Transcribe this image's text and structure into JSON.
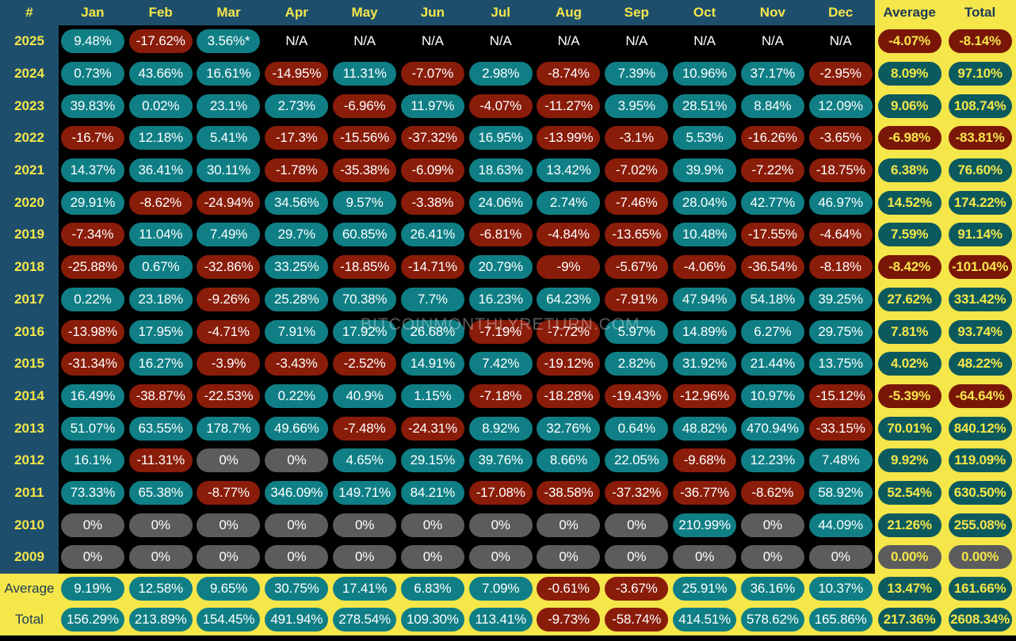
{
  "headers": [
    "#",
    "Jan",
    "Feb",
    "Mar",
    "Apr",
    "May",
    "Jun",
    "Jul",
    "Aug",
    "Sep",
    "Oct",
    "Nov",
    "Dec",
    "Average",
    "Total"
  ],
  "watermark": "BITCOINMONTHLYRETURN.COM",
  "colors": {
    "positive": "#0f7f85",
    "negative": "#8a1c0a",
    "zero": "#5c5c5c",
    "header_bg": "#1d4f6d",
    "accent_yellow": "#f5e64a"
  },
  "rows": [
    {
      "label": "2025",
      "cells": [
        "9.48%",
        "-17.62%",
        "3.56%*",
        "N/A",
        "N/A",
        "N/A",
        "N/A",
        "N/A",
        "N/A",
        "N/A",
        "N/A",
        "N/A",
        "-4.07%",
        "-8.14%"
      ]
    },
    {
      "label": "2024",
      "cells": [
        "0.73%",
        "43.66%",
        "16.61%",
        "-14.95%",
        "11.31%",
        "-7.07%",
        "2.98%",
        "-8.74%",
        "7.39%",
        "10.96%",
        "37.17%",
        "-2.95%",
        "8.09%",
        "97.10%"
      ]
    },
    {
      "label": "2023",
      "cells": [
        "39.83%",
        "0.02%",
        "23.1%",
        "2.73%",
        "-6.96%",
        "11.97%",
        "-4.07%",
        "-11.27%",
        "3.95%",
        "28.51%",
        "8.84%",
        "12.09%",
        "9.06%",
        "108.74%"
      ]
    },
    {
      "label": "2022",
      "cells": [
        "-16.7%",
        "12.18%",
        "5.41%",
        "-17.3%",
        "-15.56%",
        "-37.32%",
        "16.95%",
        "-13.99%",
        "-3.1%",
        "5.53%",
        "-16.26%",
        "-3.65%",
        "-6.98%",
        "-83.81%"
      ]
    },
    {
      "label": "2021",
      "cells": [
        "14.37%",
        "36.41%",
        "30.11%",
        "-1.78%",
        "-35.38%",
        "-6.09%",
        "18.63%",
        "13.42%",
        "-7.02%",
        "39.9%",
        "-7.22%",
        "-18.75%",
        "6.38%",
        "76.60%"
      ]
    },
    {
      "label": "2020",
      "cells": [
        "29.91%",
        "-8.62%",
        "-24.94%",
        "34.56%",
        "9.57%",
        "-3.38%",
        "24.06%",
        "2.74%",
        "-7.46%",
        "28.04%",
        "42.77%",
        "46.97%",
        "14.52%",
        "174.22%"
      ]
    },
    {
      "label": "2019",
      "cells": [
        "-7.34%",
        "11.04%",
        "7.49%",
        "29.7%",
        "60.85%",
        "26.41%",
        "-6.81%",
        "-4.84%",
        "-13.65%",
        "10.48%",
        "-17.55%",
        "-4.64%",
        "7.59%",
        "91.14%"
      ]
    },
    {
      "label": "2018",
      "cells": [
        "-25.88%",
        "0.67%",
        "-32.86%",
        "33.25%",
        "-18.85%",
        "-14.71%",
        "20.79%",
        "-9%",
        "-5.67%",
        "-4.06%",
        "-36.54%",
        "-8.18%",
        "-8.42%",
        "-101.04%"
      ]
    },
    {
      "label": "2017",
      "cells": [
        "0.22%",
        "23.18%",
        "-9.26%",
        "25.28%",
        "70.38%",
        "7.7%",
        "16.23%",
        "64.23%",
        "-7.91%",
        "47.94%",
        "54.18%",
        "39.25%",
        "27.62%",
        "331.42%"
      ]
    },
    {
      "label": "2016",
      "cells": [
        "-13.98%",
        "17.95%",
        "-4.71%",
        "7.91%",
        "17.92%",
        "26.68%",
        "-7.19%",
        "-7.72%",
        "5.97%",
        "14.89%",
        "6.27%",
        "29.75%",
        "7.81%",
        "93.74%"
      ]
    },
    {
      "label": "2015",
      "cells": [
        "-31.34%",
        "16.27%",
        "-3.9%",
        "-3.43%",
        "-2.52%",
        "14.91%",
        "7.42%",
        "-19.12%",
        "2.82%",
        "31.92%",
        "21.44%",
        "13.75%",
        "4.02%",
        "48.22%"
      ]
    },
    {
      "label": "2014",
      "cells": [
        "16.49%",
        "-38.87%",
        "-22.53%",
        "0.22%",
        "40.9%",
        "1.15%",
        "-7.18%",
        "-18.28%",
        "-19.43%",
        "-12.96%",
        "10.97%",
        "-15.12%",
        "-5.39%",
        "-64.64%"
      ]
    },
    {
      "label": "2013",
      "cells": [
        "51.07%",
        "63.55%",
        "178.7%",
        "49.66%",
        "-7.48%",
        "-24.31%",
        "8.92%",
        "32.76%",
        "0.64%",
        "48.82%",
        "470.94%",
        "-33.15%",
        "70.01%",
        "840.12%"
      ]
    },
    {
      "label": "2012",
      "cells": [
        "16.1%",
        "-11.31%",
        "0%",
        "0%",
        "4.65%",
        "29.15%",
        "39.76%",
        "8.66%",
        "22.05%",
        "-9.68%",
        "12.23%",
        "7.48%",
        "9.92%",
        "119.09%"
      ]
    },
    {
      "label": "2011",
      "cells": [
        "73.33%",
        "65.38%",
        "-8.77%",
        "346.09%",
        "149.71%",
        "84.21%",
        "-17.08%",
        "-38.58%",
        "-37.32%",
        "-36.77%",
        "-8.62%",
        "58.92%",
        "52.54%",
        "630.50%"
      ]
    },
    {
      "label": "2010",
      "cells": [
        "0%",
        "0%",
        "0%",
        "0%",
        "0%",
        "0%",
        "0%",
        "0%",
        "0%",
        "210.99%",
        "0%",
        "44.09%",
        "21.26%",
        "255.08%"
      ]
    },
    {
      "label": "2009",
      "cells": [
        "0%",
        "0%",
        "0%",
        "0%",
        "0%",
        "0%",
        "0%",
        "0%",
        "0%",
        "0%",
        "0%",
        "0%",
        "0.00%",
        "0.00%"
      ]
    },
    {
      "label": "Average",
      "cells": [
        "9.19%",
        "12.58%",
        "9.65%",
        "30.75%",
        "17.41%",
        "6.83%",
        "7.09%",
        "-0.61%",
        "-3.67%",
        "25.91%",
        "36.16%",
        "10.37%",
        "13.47%",
        "161.66%"
      ]
    },
    {
      "label": "Total",
      "cells": [
        "156.29%",
        "213.89%",
        "154.45%",
        "491.94%",
        "278.54%",
        "109.30%",
        "113.41%",
        "-9.73%",
        "-58.74%",
        "414.51%",
        "578.62%",
        "165.86%",
        "217.36%",
        "2608.34%"
      ]
    }
  ],
  "chart_data": {
    "type": "table",
    "title": "",
    "columns": [
      "#",
      "Jan",
      "Feb",
      "Mar",
      "Apr",
      "May",
      "Jun",
      "Jul",
      "Aug",
      "Sep",
      "Oct",
      "Nov",
      "Dec",
      "Average",
      "Total"
    ]
  }
}
